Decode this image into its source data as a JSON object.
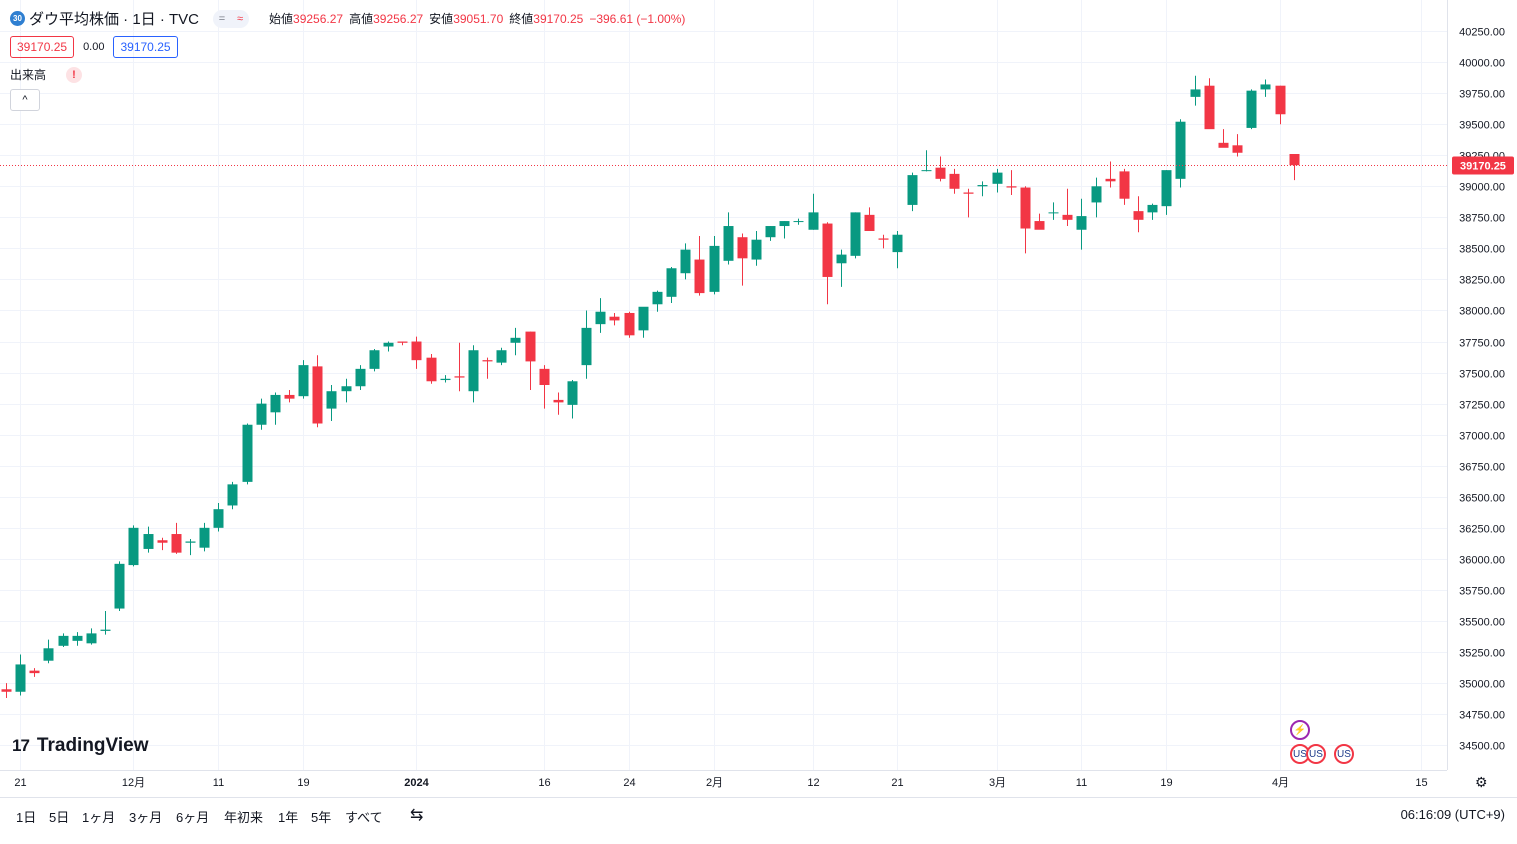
{
  "header": {
    "symbol_badge": "30",
    "title": "ダウ平均株価 · 1日 · TVC",
    "pill_left": "=",
    "pill_right": "≈",
    "open_label": "始値",
    "open_value": "39256.27",
    "high_label": "高値",
    "high_value": "39256.27",
    "low_label": "安値",
    "low_value": "39051.70",
    "close_label": "終値",
    "close_value": "39170.25",
    "change": "−396.61 (−1.00%)"
  },
  "price_boxes": {
    "bid": "39170.25",
    "spread": "0.00",
    "ask": "39170.25"
  },
  "volume": {
    "label": "出来高",
    "warning_icon": "!"
  },
  "collapse_icon": "^",
  "logo": {
    "mark": "17",
    "text": "TradingView"
  },
  "bottom_bar": {
    "ranges": [
      "1日",
      "5日",
      "1ヶ月",
      "3ヶ月",
      "6ヶ月",
      "年初来",
      "1年",
      "5年",
      "すべて"
    ],
    "compare_icon": "compare-icon",
    "time": "06:16:09 (UTC+9)"
  },
  "settings_icon": "⚙",
  "event_icons": {
    "flash": "⚡",
    "flag": "US"
  },
  "colors": {
    "up": "#089981",
    "down": "#f23645",
    "grid": "#f0f3fa",
    "axis_text": "#131722",
    "last_price_bg": "#f23645"
  },
  "chart_data": {
    "type": "candlestick",
    "last_price": 39170.25,
    "ylim": [
      34300,
      40500
    ],
    "y_ticks": [
      34500,
      34750,
      35000,
      35250,
      35500,
      35750,
      36000,
      36250,
      36500,
      36750,
      37000,
      37250,
      37500,
      37750,
      38000,
      38250,
      38500,
      38750,
      39000,
      39250,
      39500,
      39750,
      40000,
      40250
    ],
    "x_ticks": [
      {
        "i": 1,
        "label": "21"
      },
      {
        "i": 9,
        "label": "12月"
      },
      {
        "i": 15,
        "label": "11"
      },
      {
        "i": 21,
        "label": "19"
      },
      {
        "i": 29,
        "label": "2024"
      },
      {
        "i": 38,
        "label": "16"
      },
      {
        "i": 44,
        "label": "24"
      },
      {
        "i": 50,
        "label": "2月"
      },
      {
        "i": 57,
        "label": "12"
      },
      {
        "i": 63,
        "label": "21"
      },
      {
        "i": 70,
        "label": "3月"
      },
      {
        "i": 76,
        "label": "11"
      },
      {
        "i": 82,
        "label": "19"
      },
      {
        "i": 90,
        "label": "4月"
      },
      {
        "i": 100,
        "label": "15"
      }
    ],
    "candles": [
      [
        34950,
        35000,
        34880,
        34930
      ],
      [
        34930,
        35230,
        34900,
        35150
      ],
      [
        35100,
        35120,
        35050,
        35080
      ],
      [
        35180,
        35350,
        35160,
        35280
      ],
      [
        35300,
        35400,
        35290,
        35380
      ],
      [
        35340,
        35410,
        35300,
        35380
      ],
      [
        35320,
        35440,
        35310,
        35400
      ],
      [
        35420,
        35580,
        35390,
        35430
      ],
      [
        35600,
        35980,
        35580,
        35960
      ],
      [
        35950,
        36270,
        35940,
        36250
      ],
      [
        36080,
        36260,
        36050,
        36200
      ],
      [
        36150,
        36170,
        36070,
        36130
      ],
      [
        36200,
        36290,
        36040,
        36050
      ],
      [
        36130,
        36160,
        36030,
        36140
      ],
      [
        36090,
        36290,
        36060,
        36250
      ],
      [
        36250,
        36450,
        36220,
        36400
      ],
      [
        36430,
        36620,
        36400,
        36600
      ],
      [
        36620,
        37090,
        36600,
        37080
      ],
      [
        37080,
        37290,
        37040,
        37250
      ],
      [
        37180,
        37340,
        37080,
        37320
      ],
      [
        37320,
        37360,
        37260,
        37290
      ],
      [
        37310,
        37600,
        37290,
        37560
      ],
      [
        37550,
        37640,
        37060,
        37090
      ],
      [
        37210,
        37400,
        37110,
        37350
      ],
      [
        37350,
        37450,
        37260,
        37390
      ],
      [
        37390,
        37560,
        37360,
        37530
      ],
      [
        37530,
        37690,
        37510,
        37680
      ],
      [
        37710,
        37750,
        37670,
        37740
      ],
      [
        37750,
        37750,
        37720,
        37740
      ],
      [
        37750,
        37790,
        37530,
        37600
      ],
      [
        37620,
        37650,
        37410,
        37430
      ],
      [
        37440,
        37480,
        37420,
        37450
      ],
      [
        37470,
        37740,
        37350,
        37460
      ],
      [
        37350,
        37720,
        37260,
        37680
      ],
      [
        37600,
        37620,
        37450,
        37590
      ],
      [
        37580,
        37700,
        37560,
        37680
      ],
      [
        37740,
        37860,
        37640,
        37780
      ],
      [
        37830,
        37830,
        37360,
        37590
      ],
      [
        37530,
        37560,
        37210,
        37400
      ],
      [
        37280,
        37340,
        37160,
        37260
      ],
      [
        37240,
        37440,
        37130,
        37430
      ],
      [
        37560,
        38000,
        37450,
        37860
      ],
      [
        37890,
        38100,
        37820,
        37990
      ],
      [
        37950,
        37980,
        37880,
        37920
      ],
      [
        37980,
        37990,
        37780,
        37800
      ],
      [
        37840,
        38000,
        37780,
        38030
      ],
      [
        38050,
        38160,
        37990,
        38150
      ],
      [
        38110,
        38350,
        38060,
        38340
      ],
      [
        38300,
        38540,
        38250,
        38490
      ],
      [
        38410,
        38600,
        38120,
        38140
      ],
      [
        38150,
        38600,
        38130,
        38520
      ],
      [
        38400,
        38790,
        38370,
        38680
      ],
      [
        38590,
        38620,
        38200,
        38420
      ],
      [
        38410,
        38640,
        38360,
        38570
      ],
      [
        38590,
        38680,
        38560,
        38680
      ],
      [
        38680,
        38720,
        38580,
        38720
      ],
      [
        38720,
        38740,
        38690,
        38720
      ],
      [
        38650,
        38940,
        38650,
        38790
      ],
      [
        38700,
        38710,
        38050,
        38270
      ],
      [
        38380,
        38490,
        38190,
        38450
      ],
      [
        38440,
        38790,
        38420,
        38790
      ],
      [
        38770,
        38830,
        38660,
        38640
      ],
      [
        38580,
        38610,
        38500,
        38570
      ],
      [
        38470,
        38640,
        38340,
        38610
      ],
      [
        38850,
        39110,
        38800,
        39090
      ],
      [
        39130,
        39290,
        39120,
        39130
      ],
      [
        39150,
        39240,
        39040,
        39060
      ],
      [
        39100,
        39140,
        38940,
        38980
      ],
      [
        38950,
        38980,
        38750,
        38940
      ],
      [
        39000,
        39040,
        38920,
        39010
      ],
      [
        39020,
        39140,
        38950,
        39110
      ],
      [
        39000,
        39130,
        38930,
        38990
      ],
      [
        38990,
        39000,
        38460,
        38660
      ],
      [
        38720,
        38780,
        38660,
        38650
      ],
      [
        38790,
        38870,
        38730,
        38790
      ],
      [
        38770,
        38980,
        38680,
        38730
      ],
      [
        38650,
        38900,
        38490,
        38760
      ],
      [
        38870,
        39070,
        38750,
        39000
      ],
      [
        39060,
        39200,
        38990,
        39040
      ],
      [
        39120,
        39140,
        38850,
        38900
      ],
      [
        38800,
        38920,
        38630,
        38730
      ],
      [
        38790,
        38860,
        38730,
        38850
      ],
      [
        38840,
        39130,
        38770,
        39130
      ],
      [
        39060,
        39540,
        38990,
        39520
      ],
      [
        39720,
        39890,
        39650,
        39780
      ],
      [
        39810,
        39870,
        39470,
        39460
      ],
      [
        39350,
        39460,
        39330,
        39310
      ],
      [
        39330,
        39420,
        39240,
        39270
      ],
      [
        39470,
        39780,
        39460,
        39770
      ],
      [
        39780,
        39860,
        39720,
        39820
      ],
      [
        39810,
        39810,
        39500,
        39580
      ],
      [
        39260,
        39260,
        39050,
        39170
      ]
    ]
  }
}
